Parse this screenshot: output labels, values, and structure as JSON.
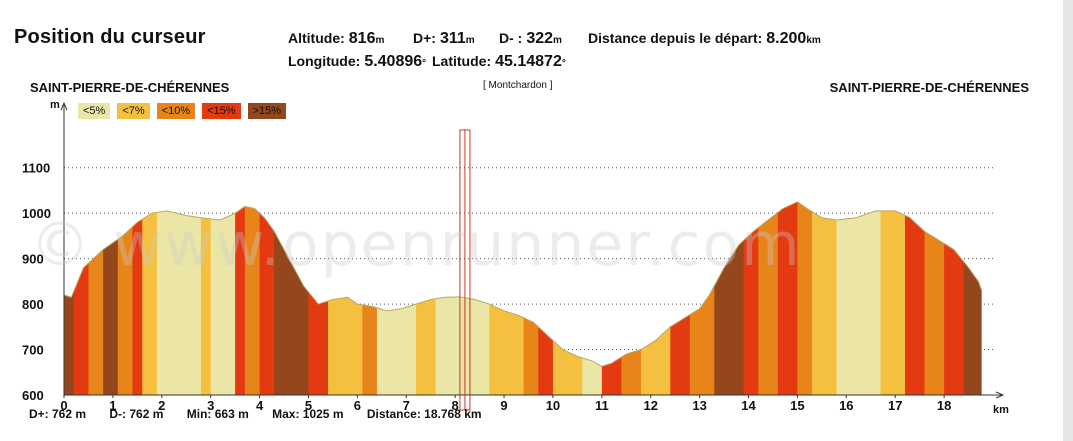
{
  "header": {
    "title": "Position du curseur",
    "altitude_label": "Altitude:",
    "altitude_value": "816",
    "altitude_unit": "m",
    "dplus_label": "D+:",
    "dplus_value": "311",
    "dplus_unit": "m",
    "dminus_label": "D- :",
    "dminus_value": "322",
    "dminus_unit": "m",
    "distance_label": "Distance depuis le départ:",
    "distance_value": "8.200",
    "distance_unit": "km",
    "longitude_label": "Longitude:",
    "longitude_value": "5.40896",
    "longitude_unit": "°",
    "latitude_label": "Latitude:",
    "latitude_value": "45.14872",
    "latitude_unit": "°"
  },
  "labels": {
    "start": "SAINT-PIERRE-DE-CHÉRENNES",
    "end": "SAINT-PIERRE-DE-CHÉRENNES",
    "place": "[ Montchardon ]",
    "watermark": "© www.openrunner.com"
  },
  "legend": [
    {
      "label": "<5%",
      "color": "#ebe6a6"
    },
    {
      "label": "<7%",
      "color": "#f5c040"
    },
    {
      "label": "<10%",
      "color": "#e8851a"
    },
    {
      "label": "<15%",
      "color": "#e33a12"
    },
    {
      "label": ">15%",
      "color": "#94461c"
    }
  ],
  "stats": {
    "dplus": "D+: 762 m",
    "dminus": "D-: 762 m",
    "min": "Min: 663 m",
    "max": "Max: 1025 m",
    "distance": "Distance: 18.768 km"
  },
  "chart_data": {
    "type": "area",
    "x": [
      0,
      0.15,
      0.4,
      0.8,
      1.2,
      1.5,
      1.8,
      2.1,
      2.5,
      2.8,
      3.2,
      3.5,
      3.7,
      3.9,
      4.1,
      4.3,
      4.6,
      4.9,
      5.2,
      5.5,
      5.8,
      6.0,
      6.3,
      6.6,
      6.9,
      7.2,
      7.5,
      7.8,
      8.1,
      8.4,
      8.7,
      9.0,
      9.3,
      9.6,
      9.9,
      10.2,
      10.5,
      10.8,
      11.0,
      11.2,
      11.5,
      11.8,
      12.1,
      12.4,
      12.7,
      13.0,
      13.2,
      13.5,
      13.8,
      14.1,
      14.4,
      14.7,
      15.0,
      15.2,
      15.5,
      15.8,
      16.2,
      16.6,
      17.0,
      17.3,
      17.6,
      17.9,
      18.2,
      18.5,
      18.7,
      18.768
    ],
    "y": [
      820,
      815,
      880,
      920,
      950,
      980,
      1000,
      1005,
      995,
      990,
      985,
      1000,
      1015,
      1010,
      990,
      960,
      900,
      840,
      800,
      810,
      815,
      800,
      795,
      785,
      790,
      800,
      810,
      815,
      816,
      810,
      800,
      785,
      775,
      760,
      730,
      700,
      685,
      675,
      663,
      670,
      690,
      700,
      720,
      750,
      770,
      790,
      820,
      880,
      930,
      960,
      985,
      1010,
      1025,
      1010,
      990,
      985,
      990,
      1005,
      1005,
      990,
      960,
      940,
      920,
      880,
      850,
      830
    ],
    "slope_bands": [
      {
        "from": 0,
        "to": 0.2,
        "class": ">15%"
      },
      {
        "from": 0.2,
        "to": 0.5,
        "class": "<15%"
      },
      {
        "from": 0.5,
        "to": 0.8,
        "class": "<10%"
      },
      {
        "from": 0.8,
        "to": 1.1,
        "class": ">15%"
      },
      {
        "from": 1.1,
        "to": 1.4,
        "class": "<10%"
      },
      {
        "from": 1.4,
        "to": 1.6,
        "class": "<15%"
      },
      {
        "from": 1.6,
        "to": 1.9,
        "class": "<7%"
      },
      {
        "from": 1.9,
        "to": 2.8,
        "class": "<5%"
      },
      {
        "from": 2.8,
        "to": 3.0,
        "class": "<7%"
      },
      {
        "from": 3.0,
        "to": 3.5,
        "class": "<5%"
      },
      {
        "from": 3.5,
        "to": 3.7,
        "class": "<15%"
      },
      {
        "from": 3.7,
        "to": 4.0,
        "class": "<10%"
      },
      {
        "from": 4.0,
        "to": 4.3,
        "class": "<15%"
      },
      {
        "from": 4.3,
        "to": 5.0,
        "class": ">15%"
      },
      {
        "from": 5.0,
        "to": 5.4,
        "class": "<15%"
      },
      {
        "from": 5.4,
        "to": 6.1,
        "class": "<7%"
      },
      {
        "from": 6.1,
        "to": 6.4,
        "class": "<10%"
      },
      {
        "from": 6.4,
        "to": 7.2,
        "class": "<5%"
      },
      {
        "from": 7.2,
        "to": 7.6,
        "class": "<7%"
      },
      {
        "from": 7.6,
        "to": 8.7,
        "class": "<5%"
      },
      {
        "from": 8.7,
        "to": 9.4,
        "class": "<7%"
      },
      {
        "from": 9.4,
        "to": 9.7,
        "class": "<10%"
      },
      {
        "from": 9.7,
        "to": 10.0,
        "class": "<15%"
      },
      {
        "from": 10.0,
        "to": 10.6,
        "class": "<7%"
      },
      {
        "from": 10.6,
        "to": 11.0,
        "class": "<5%"
      },
      {
        "from": 11.0,
        "to": 11.4,
        "class": "<15%"
      },
      {
        "from": 11.4,
        "to": 11.8,
        "class": "<10%"
      },
      {
        "from": 11.8,
        "to": 12.4,
        "class": "<7%"
      },
      {
        "from": 12.4,
        "to": 12.8,
        "class": "<15%"
      },
      {
        "from": 12.8,
        "to": 13.3,
        "class": "<10%"
      },
      {
        "from": 13.3,
        "to": 13.9,
        "class": ">15%"
      },
      {
        "from": 13.9,
        "to": 14.2,
        "class": "<15%"
      },
      {
        "from": 14.2,
        "to": 14.6,
        "class": "<10%"
      },
      {
        "from": 14.6,
        "to": 15.0,
        "class": "<15%"
      },
      {
        "from": 15.0,
        "to": 15.3,
        "class": "<10%"
      },
      {
        "from": 15.3,
        "to": 15.8,
        "class": "<7%"
      },
      {
        "from": 15.8,
        "to": 16.7,
        "class": "<5%"
      },
      {
        "from": 16.7,
        "to": 17.2,
        "class": "<7%"
      },
      {
        "from": 17.2,
        "to": 17.6,
        "class": "<15%"
      },
      {
        "from": 17.6,
        "to": 18.0,
        "class": "<10%"
      },
      {
        "from": 18.0,
        "to": 18.4,
        "class": "<15%"
      },
      {
        "from": 18.4,
        "to": 18.768,
        "class": ">15%"
      }
    ],
    "xlim": [
      0,
      19
    ],
    "ylim": [
      600,
      1150
    ],
    "xticks": [
      0,
      1,
      2,
      3,
      4,
      5,
      6,
      7,
      8,
      9,
      10,
      11,
      12,
      13,
      14,
      15,
      16,
      17,
      18
    ],
    "yticks": [
      600,
      700,
      800,
      900,
      1000,
      1100
    ],
    "xunit": "km",
    "yunit": "m",
    "cursor_km": 8.2,
    "grid": true
  }
}
